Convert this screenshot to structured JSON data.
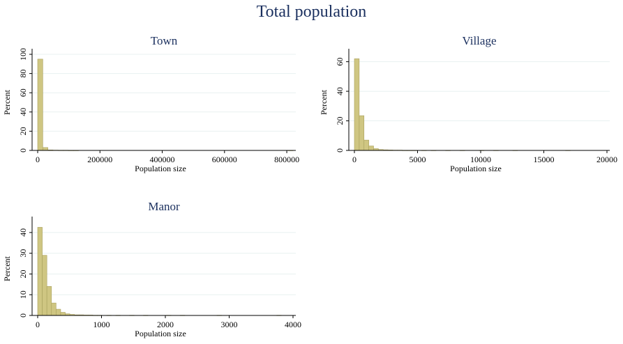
{
  "title": "Total population",
  "colors": {
    "bar_fill": "#cfc682",
    "bar_edge": "#a9a05d",
    "title": "#1a2f5e",
    "grid": "#e8f1f0"
  },
  "chart_data": [
    {
      "type": "bar",
      "title": "Town",
      "xlabel": "Population size",
      "ylabel": "Percent",
      "xlim": [
        0,
        820000
      ],
      "ylim": [
        0,
        100
      ],
      "xticks": [
        0,
        200000,
        400000,
        600000,
        800000
      ],
      "xtick_labels": [
        "0",
        "200000",
        "400000",
        "600000",
        "800000"
      ],
      "yticks": [
        0,
        20,
        40,
        60,
        80,
        100
      ],
      "ytick_labels": [
        "0",
        "20",
        "40",
        "60",
        "80",
        "100"
      ],
      "grid": true,
      "bin_width": 16400,
      "bins": [
        {
          "x0": 0,
          "value": 95
        },
        {
          "x0": 16400,
          "value": 3
        },
        {
          "x0": 32800,
          "value": 0.5
        },
        {
          "x0": 49200,
          "value": 0.3
        },
        {
          "x0": 65600,
          "value": 0.2
        },
        {
          "x0": 82000,
          "value": 0.2
        },
        {
          "x0": 98400,
          "value": 0.1
        },
        {
          "x0": 114800,
          "value": 0.1
        },
        {
          "x0": 803600,
          "value": 0.1
        }
      ]
    },
    {
      "type": "bar",
      "title": "Village",
      "xlabel": "Population size",
      "ylabel": "Percent",
      "xlim": [
        0,
        20000
      ],
      "ylim": [
        0,
        65
      ],
      "xticks": [
        0,
        5000,
        10000,
        15000,
        20000
      ],
      "xtick_labels": [
        "0",
        "5000",
        "10000",
        "15000",
        "20000"
      ],
      "yticks": [
        0,
        20,
        40,
        60
      ],
      "ytick_labels": [
        "0",
        "20",
        "40",
        "60"
      ],
      "grid": true,
      "bin_width": 380,
      "bins": [
        {
          "x0": 0,
          "value": 62
        },
        {
          "x0": 380,
          "value": 23.5
        },
        {
          "x0": 760,
          "value": 7
        },
        {
          "x0": 1140,
          "value": 3
        },
        {
          "x0": 1520,
          "value": 1.2
        },
        {
          "x0": 1900,
          "value": 0.6
        },
        {
          "x0": 2280,
          "value": 0.4
        },
        {
          "x0": 2660,
          "value": 0.3
        },
        {
          "x0": 3040,
          "value": 0.2
        },
        {
          "x0": 3420,
          "value": 0.2
        },
        {
          "x0": 3800,
          "value": 0.1
        },
        {
          "x0": 4180,
          "value": 0.1
        },
        {
          "x0": 4560,
          "value": 0.1
        },
        {
          "x0": 5320,
          "value": 0.1
        },
        {
          "x0": 6080,
          "value": 0.1
        },
        {
          "x0": 7220,
          "value": 0.1
        },
        {
          "x0": 8360,
          "value": 0.1
        },
        {
          "x0": 9880,
          "value": 0.1
        },
        {
          "x0": 11020,
          "value": 0.1
        },
        {
          "x0": 12540,
          "value": 0.1
        },
        {
          "x0": 16720,
          "value": 0.1
        }
      ]
    },
    {
      "type": "bar",
      "title": "Manor",
      "xlabel": "Population size",
      "ylabel": "Percent",
      "xlim": [
        0,
        4000
      ],
      "ylim": [
        0,
        45
      ],
      "xticks": [
        0,
        1000,
        2000,
        3000,
        4000
      ],
      "xtick_labels": [
        "0",
        "1000",
        "2000",
        "3000",
        "4000"
      ],
      "yticks": [
        0,
        10,
        20,
        30,
        40
      ],
      "ytick_labels": [
        "0",
        "10",
        "20",
        "30",
        "40"
      ],
      "grid": true,
      "bin_width": 72,
      "bins": [
        {
          "x0": 0,
          "value": 42.5
        },
        {
          "x0": 72,
          "value": 29
        },
        {
          "x0": 144,
          "value": 14
        },
        {
          "x0": 216,
          "value": 6
        },
        {
          "x0": 288,
          "value": 3
        },
        {
          "x0": 360,
          "value": 1.5
        },
        {
          "x0": 432,
          "value": 0.8
        },
        {
          "x0": 504,
          "value": 0.5
        },
        {
          "x0": 576,
          "value": 0.3
        },
        {
          "x0": 648,
          "value": 0.3
        },
        {
          "x0": 720,
          "value": 0.2
        },
        {
          "x0": 792,
          "value": 0.2
        },
        {
          "x0": 864,
          "value": 0.1
        },
        {
          "x0": 936,
          "value": 0.1
        },
        {
          "x0": 1080,
          "value": 0.1
        },
        {
          "x0": 1224,
          "value": 0.1
        },
        {
          "x0": 1440,
          "value": 0.1
        },
        {
          "x0": 1656,
          "value": 0.1
        },
        {
          "x0": 2016,
          "value": 0.1
        },
        {
          "x0": 2232,
          "value": 0.1
        },
        {
          "x0": 2808,
          "value": 0.1
        },
        {
          "x0": 3744,
          "value": 0.1
        }
      ]
    }
  ]
}
